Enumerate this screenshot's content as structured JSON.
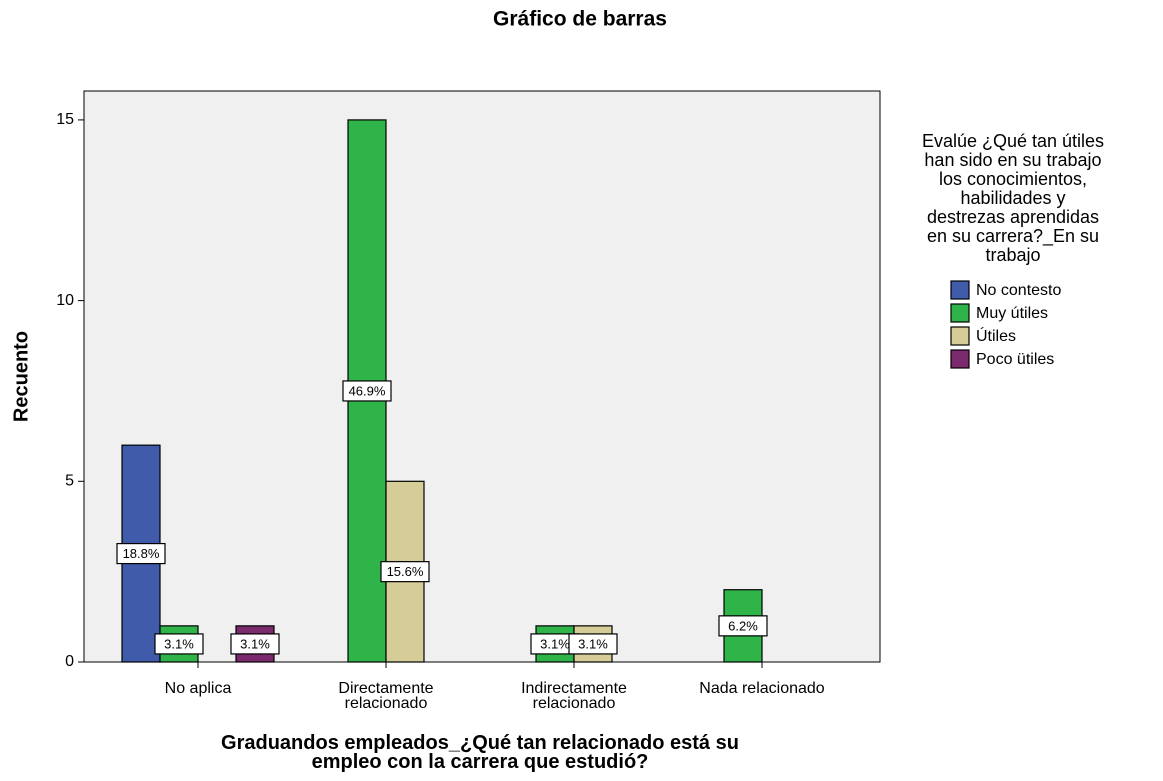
{
  "chart_data": {
    "type": "bar",
    "title": "Gráfico de barras",
    "x_label": "Graduandos empleados_¿Qué tan relacionado está su\nempleo con la carrera que estudió?",
    "y_label": "Recuento",
    "categories": [
      "No aplica",
      "Directamente\nrelacionado",
      "Indirectamente\nrelacionado",
      "Nada relacionado"
    ],
    "legend_title": "Evalúe ¿Qué tan útiles\nhan sido en su trabajo\nlos conocimientos,\nhabilidades y\ndestrezas aprendidas\nen su carrera?_En su\ntrabajo",
    "legend_position": "right",
    "series": [
      {
        "name": "No contesto",
        "color": "#3f5ba9",
        "values": [
          6,
          null,
          null,
          null
        ],
        "value_labels": [
          "18.8%",
          null,
          null,
          null
        ]
      },
      {
        "name": "Muy útiles",
        "color": "#2fb44a",
        "values": [
          1,
          15,
          1,
          2
        ],
        "value_labels": [
          "3.1%",
          "46.9%",
          "3.1%",
          "6.2%"
        ]
      },
      {
        "name": "Útiles",
        "color": "#d5cc97",
        "values": [
          null,
          5,
          1,
          null
        ],
        "value_labels": [
          null,
          "15.6%",
          "3.1%",
          null
        ]
      },
      {
        "name": "Poco ütiles",
        "color": "#7b2a6d",
        "values": [
          1,
          null,
          null,
          null
        ],
        "value_labels": [
          "3.1%",
          null,
          null,
          null
        ]
      }
    ],
    "ylim": [
      0,
      15.8
    ],
    "yticks": [
      0,
      5,
      10,
      15
    ],
    "grid": false
  }
}
